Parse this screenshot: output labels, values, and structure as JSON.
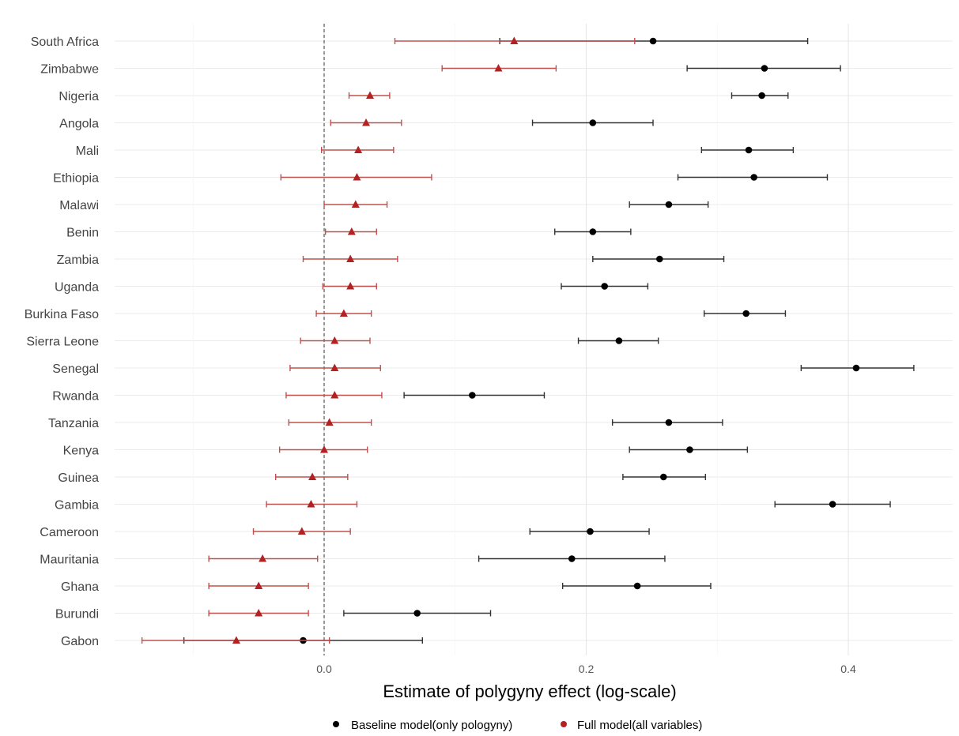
{
  "chart_data": {
    "type": "scatter",
    "xlabel": "Estimate of polygyny effect (log-scale)",
    "ylabel": "",
    "xticks": [
      0.0,
      0.2,
      0.4
    ],
    "xtick_labels": [
      "0.0",
      "0.2",
      "0.4"
    ],
    "xlim": [
      -0.16,
      0.48
    ],
    "reference_line": 0,
    "grid": true,
    "legend_position": "bottom",
    "categories": [
      "South Africa",
      "Zimbabwe",
      "Nigeria",
      "Angola",
      "Mali",
      "Ethiopia",
      "Malawi",
      "Benin",
      "Zambia",
      "Uganda",
      "Burkina Faso",
      "Sierra Leone",
      "Senegal",
      "Rwanda",
      "Tanzania",
      "Kenya",
      "Guinea",
      "Gambia",
      "Cameroon",
      "Mauritania",
      "Ghana",
      "Burundi",
      "Gabon"
    ],
    "series": [
      {
        "name": "Baseline model(only pologyny)",
        "color": "#000000",
        "marker": "circle",
        "values": [
          0.251,
          0.336,
          0.334,
          0.205,
          0.324,
          0.328,
          0.263,
          0.205,
          0.256,
          0.214,
          0.322,
          0.225,
          0.406,
          0.113,
          0.263,
          0.279,
          0.259,
          0.388,
          0.203,
          0.189,
          0.239,
          0.071,
          -0.016
        ],
        "lower": [
          0.134,
          0.277,
          0.311,
          0.159,
          0.288,
          0.27,
          0.233,
          0.176,
          0.205,
          0.181,
          0.29,
          0.194,
          0.364,
          0.061,
          0.22,
          0.233,
          0.228,
          0.344,
          0.157,
          0.118,
          0.182,
          0.015,
          -0.107
        ],
        "upper": [
          0.369,
          0.394,
          0.354,
          0.251,
          0.358,
          0.384,
          0.293,
          0.234,
          0.305,
          0.247,
          0.352,
          0.255,
          0.45,
          0.168,
          0.304,
          0.323,
          0.291,
          0.432,
          0.248,
          0.26,
          0.295,
          0.127,
          0.075
        ]
      },
      {
        "name": "Full model(all variables)",
        "color": "#b22222",
        "marker": "triangle",
        "values": [
          0.145,
          0.133,
          0.035,
          0.032,
          0.026,
          0.025,
          0.024,
          0.021,
          0.02,
          0.02,
          0.015,
          0.008,
          0.008,
          0.008,
          0.004,
          0.0,
          -0.009,
          -0.01,
          -0.017,
          -0.047,
          -0.05,
          -0.05,
          -0.067
        ],
        "lower": [
          0.054,
          0.09,
          0.019,
          0.005,
          -0.002,
          -0.033,
          0.0,
          0.001,
          -0.016,
          -0.001,
          -0.006,
          -0.018,
          -0.026,
          -0.029,
          -0.027,
          -0.034,
          -0.037,
          -0.044,
          -0.054,
          -0.088,
          -0.088,
          -0.088,
          -0.139
        ],
        "upper": [
          0.237,
          0.177,
          0.05,
          0.059,
          0.053,
          0.082,
          0.048,
          0.04,
          0.056,
          0.04,
          0.036,
          0.035,
          0.043,
          0.044,
          0.036,
          0.033,
          0.018,
          0.025,
          0.02,
          -0.005,
          -0.012,
          -0.012,
          0.004
        ]
      }
    ]
  }
}
